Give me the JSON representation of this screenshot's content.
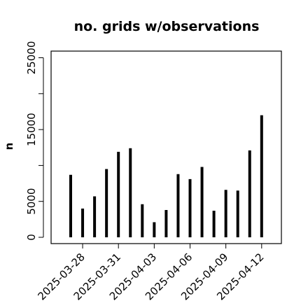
{
  "chart_data": {
    "type": "bar",
    "title": "no. grids w/observations",
    "xlabel": "",
    "ylabel": "n",
    "x": [
      "2025-03-27",
      "2025-03-28",
      "2025-03-29",
      "2025-03-30",
      "2025-03-31",
      "2025-04-01",
      "2025-04-02",
      "2025-04-03",
      "2025-04-04",
      "2025-04-05",
      "2025-04-06",
      "2025-04-07",
      "2025-04-08",
      "2025-04-09",
      "2025-04-10",
      "2025-04-11",
      "2025-04-12"
    ],
    "values": [
      8700,
      4000,
      5700,
      9500,
      11900,
      12400,
      4600,
      2100,
      3800,
      8800,
      8100,
      9800,
      3700,
      6600,
      6500,
      12100,
      17000
    ],
    "ylim": [
      0,
      26000
    ],
    "yticks": [
      0,
      5000,
      10000,
      15000,
      20000,
      25000
    ],
    "ytick_labels": [
      "0",
      "5000",
      "",
      "15000",
      "",
      "25000"
    ],
    "xticks": [
      "2025-03-28",
      "2025-03-31",
      "2025-04-03",
      "2025-04-06",
      "2025-04-09",
      "2025-04-12"
    ],
    "xtick_labels": [
      "2025-03-28",
      "2025-03-31",
      "2025-04-03",
      "2025-04-06",
      "2025-04-09",
      "2025-04-12"
    ],
    "highlight_tick": "2025-04-03",
    "colors": {
      "bar": "#000000",
      "axis": "#000000",
      "highlight_label": "#228B22",
      "tick_label": "#000000"
    },
    "grid": false
  }
}
